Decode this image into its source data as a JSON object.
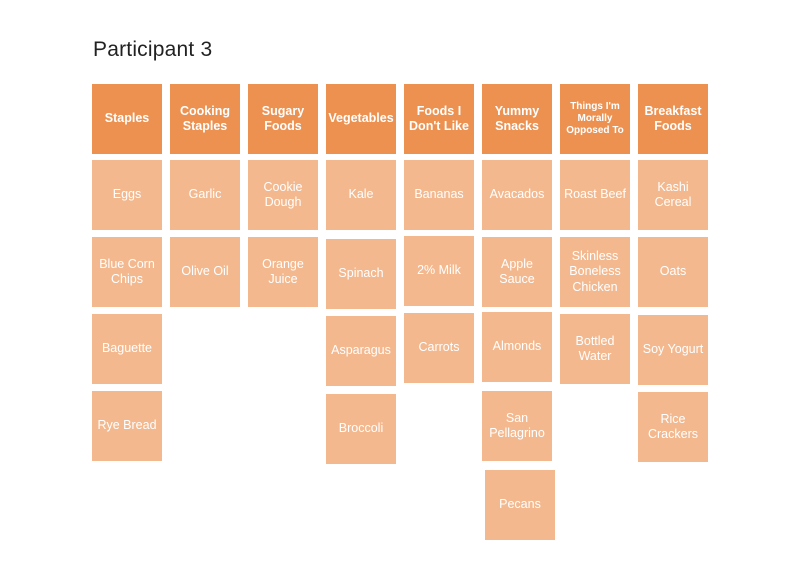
{
  "title": "Participant 3",
  "colors": {
    "header_bg": "#EC9150",
    "card_bg": "#F3B88E",
    "text": "#FFFFFF"
  },
  "columns": [
    {
      "name": "Staples",
      "items": [
        "Eggs",
        "Blue Corn Chips",
        "Baguette",
        "Rye Bread"
      ]
    },
    {
      "name": "Cooking Staples",
      "items": [
        "Garlic",
        "Olive Oil"
      ]
    },
    {
      "name": "Sugary Foods",
      "items": [
        "Cookie Dough",
        "Orange Juice"
      ]
    },
    {
      "name": "Vegetables",
      "items": [
        "Kale",
        "Spinach",
        "Asparagus",
        "Broccoli"
      ]
    },
    {
      "name": "Foods I Don't Like",
      "items": [
        "Bananas",
        "2% Milk",
        "Carrots"
      ]
    },
    {
      "name": "Yummy Snacks",
      "items": [
        "Avacados",
        "Apple Sauce",
        "Almonds",
        "San Pellagrino",
        "Pecans"
      ]
    },
    {
      "name": "Things I'm Morally Opposed To",
      "items": [
        "Roast Beef",
        "Skinless Boneless Chicken",
        "Bottled Water"
      ]
    },
    {
      "name": "Breakfast Foods",
      "items": [
        "Kashi Cereal",
        "Oats",
        "Soy Yogurt",
        "Rice Crackers"
      ]
    }
  ]
}
